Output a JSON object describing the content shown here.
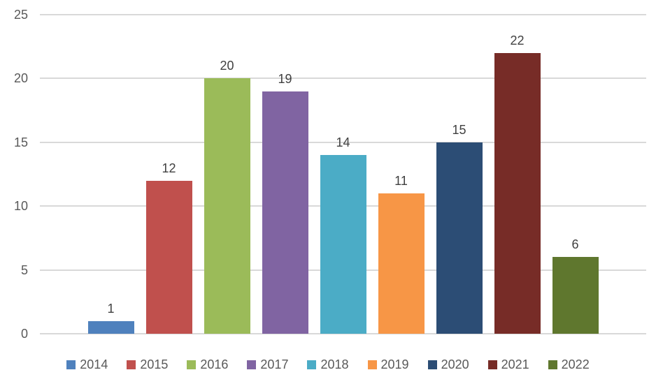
{
  "chart_data": {
    "type": "bar",
    "title": "",
    "categories": [
      "2014",
      "2015",
      "2016",
      "2017",
      "2018",
      "2019",
      "2020",
      "2021",
      "2022"
    ],
    "series": [
      {
        "name": "2014",
        "value": 1,
        "label": "1",
        "color": "#4F81BD"
      },
      {
        "name": "2015",
        "value": 12,
        "label": "12",
        "color": "#C0504D"
      },
      {
        "name": "2016",
        "value": 20,
        "label": "20",
        "color": "#9BBB59"
      },
      {
        "name": "2017",
        "value": 19,
        "label": "19",
        "color": "#8064A2"
      },
      {
        "name": "2018",
        "value": 14,
        "label": "14",
        "color": "#4BACC6"
      },
      {
        "name": "2019",
        "value": 11,
        "label": "11",
        "color": "#F79646"
      },
      {
        "name": "2020",
        "value": 15,
        "label": "15",
        "color": "#2C4D75"
      },
      {
        "name": "2021",
        "value": 22,
        "label": "22",
        "color": "#772C27"
      },
      {
        "name": "2022",
        "value": 6,
        "label": "6",
        "color": "#5F772E"
      }
    ],
    "values": [
      1,
      12,
      20,
      19,
      14,
      11,
      15,
      22,
      6
    ],
    "ylim": [
      0,
      25
    ],
    "yticks": [
      0,
      5,
      10,
      15,
      20,
      25
    ],
    "ytick_labels": [
      "0",
      "5",
      "10",
      "15",
      "20",
      "25"
    ],
    "xlabel": "",
    "ylabel": "",
    "grid": "horizontal",
    "data_labels_shown": true,
    "legend_position": "bottom",
    "colors": {
      "gridline": "#D9D9D9",
      "axis_text": "#595959",
      "data_label_text": "#404040",
      "legend_text": "#595959",
      "background": "#FFFFFF"
    }
  }
}
